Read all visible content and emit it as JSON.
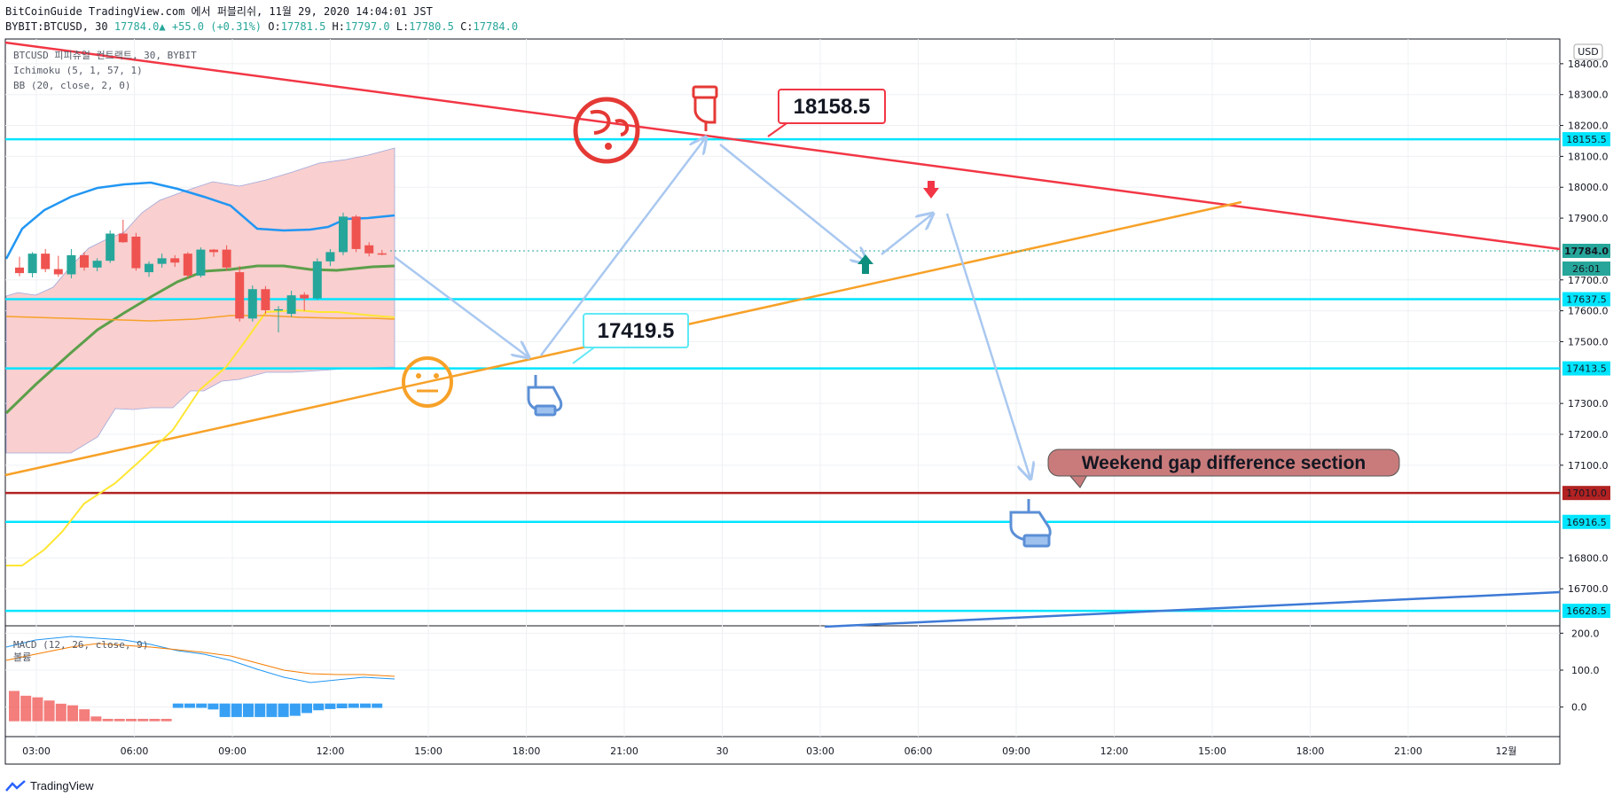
{
  "header": {
    "line1": "BitCoinGuide TradingView.com 에서 퍼블리쉬, 11월 29, 2020 14:04:01 JST",
    "symbol": "BYBIT:BTCUSD, 30",
    "last": "17784.0",
    "change": "+55.0 (+0.31%)",
    "o_label": "O:",
    "o": "17781.5",
    "h_label": "H:",
    "h": "17797.0",
    "l_label": "L:",
    "l": "17780.5",
    "c_label": "C:",
    "c": "17784.0"
  },
  "legend": {
    "symbol_line": "BTCUSD 피피츄얼 컨트랙트, 30, BYBIT",
    "ichimoku": "Ichimoku (5, 1, 57, 1)",
    "bb": "BB (20, close, 2, 0)",
    "macd": "MACD (12, 26, close, 9)",
    "volume": "볼륨"
  },
  "currency_button": "USD",
  "watermark": "TradingView",
  "colors": {
    "up": "#26a69a",
    "down": "#ef5350",
    "horizontal": "#00e5ff",
    "resistance": "#f23645",
    "support": "#f7a128",
    "bb_upper": "#2196f3",
    "baseline": "#b22222",
    "arrow": "#a9c8f0",
    "cloud": "#f9cfcf"
  },
  "price_badges": {
    "last": "17784.0",
    "countdown": "26:01"
  },
  "callouts": {
    "top": "18158.5",
    "mid": "17419.5",
    "weekend": "Weekend gap difference section"
  },
  "chart_data": {
    "type": "candlestick",
    "symbol": "BTCUSD",
    "timeframe": "30",
    "x_ticks": [
      "03:00",
      "06:00",
      "09:00",
      "12:00",
      "15:00",
      "18:00",
      "21:00",
      "30",
      "03:00",
      "06:00",
      "09:00",
      "12:00",
      "15:00",
      "18:00",
      "21:00",
      "12월"
    ],
    "price_ticks": [
      18400,
      18300,
      18200,
      18100,
      18000,
      17900,
      17700,
      17600,
      17500,
      17300,
      17200,
      17100,
      16800,
      16700
    ],
    "price_ylim": [
      16580,
      18480
    ],
    "macd_ticks": [
      200,
      100,
      0
    ],
    "macd_ylim": [
      -80,
      220
    ],
    "horizontal_levels": [
      {
        "price": 18155.5,
        "color": "#00e5ff"
      },
      {
        "price": 17637.5,
        "color": "#00e5ff"
      },
      {
        "price": 17413.5,
        "color": "#00e5ff"
      },
      {
        "price": 17010.0,
        "color": "#b22222"
      },
      {
        "price": 16916.5,
        "color": "#00e5ff"
      },
      {
        "price": 16628.5,
        "color": "#00e5ff"
      }
    ],
    "candles": [
      {
        "o": 17740,
        "h": 17775,
        "l": 17712,
        "c": 17722
      },
      {
        "o": 17722,
        "h": 17790,
        "l": 17708,
        "c": 17785
      },
      {
        "o": 17785,
        "h": 17800,
        "l": 17725,
        "c": 17735
      },
      {
        "o": 17735,
        "h": 17778,
        "l": 17710,
        "c": 17718
      },
      {
        "o": 17718,
        "h": 17800,
        "l": 17705,
        "c": 17780
      },
      {
        "o": 17780,
        "h": 17790,
        "l": 17730,
        "c": 17740
      },
      {
        "o": 17740,
        "h": 17770,
        "l": 17728,
        "c": 17762
      },
      {
        "o": 17762,
        "h": 17860,
        "l": 17755,
        "c": 17850
      },
      {
        "o": 17850,
        "h": 17895,
        "l": 17820,
        "c": 17822
      },
      {
        "o": 17840,
        "h": 17852,
        "l": 17730,
        "c": 17738
      },
      {
        "o": 17725,
        "h": 17760,
        "l": 17710,
        "c": 17752
      },
      {
        "o": 17752,
        "h": 17785,
        "l": 17740,
        "c": 17770
      },
      {
        "o": 17770,
        "h": 17780,
        "l": 17742,
        "c": 17756
      },
      {
        "o": 17785,
        "h": 17790,
        "l": 17705,
        "c": 17714
      },
      {
        "o": 17714,
        "h": 17805,
        "l": 17708,
        "c": 17798
      },
      {
        "o": 17798,
        "h": 17800,
        "l": 17775,
        "c": 17790
      },
      {
        "o": 17798,
        "h": 17812,
        "l": 17730,
        "c": 17740
      },
      {
        "o": 17725,
        "h": 17745,
        "l": 17565,
        "c": 17575
      },
      {
        "o": 17575,
        "h": 17682,
        "l": 17565,
        "c": 17670
      },
      {
        "o": 17670,
        "h": 17680,
        "l": 17590,
        "c": 17602
      },
      {
        "o": 17602,
        "h": 17615,
        "l": 17530,
        "c": 17605
      },
      {
        "o": 17590,
        "h": 17665,
        "l": 17580,
        "c": 17650
      },
      {
        "o": 17652,
        "h": 17660,
        "l": 17600,
        "c": 17640
      },
      {
        "o": 17640,
        "h": 17770,
        "l": 17635,
        "c": 17760
      },
      {
        "o": 17760,
        "h": 17800,
        "l": 17745,
        "c": 17790
      },
      {
        "o": 17790,
        "h": 17918,
        "l": 17780,
        "c": 17905
      },
      {
        "o": 17905,
        "h": 17910,
        "l": 17790,
        "c": 17800
      },
      {
        "o": 17812,
        "h": 17822,
        "l": 17776,
        "c": 17786
      },
      {
        "o": 17786,
        "h": 17797,
        "l": 17780,
        "c": 17784
      }
    ],
    "volume_bars": [
      38,
      32,
      30,
      26,
      22,
      20,
      15,
      6,
      3,
      3,
      3,
      3,
      3,
      3,
      -2,
      -2,
      -2,
      -6,
      -25,
      -25,
      -25,
      -25,
      -25,
      -25,
      -22,
      -15,
      -8,
      -5,
      -3,
      -2,
      -2,
      -2
    ],
    "volume_colors": [
      "#ef5350",
      "#ef5350",
      "#ef5350",
      "#ef5350",
      "#ef5350",
      "#ef5350",
      "#ef5350",
      "#ef5350",
      "#ef5350",
      "#ef5350",
      "#ef5350",
      "#ef5350",
      "#ef5350",
      "#ef5350",
      "#2196f3",
      "#2196f3",
      "#2196f3",
      "#2196f3",
      "#2196f3",
      "#2196f3",
      "#2196f3",
      "#2196f3",
      "#2196f3",
      "#2196f3",
      "#2196f3",
      "#2196f3",
      "#2196f3",
      "#2196f3",
      "#2196f3",
      "#2196f3",
      "#2196f3",
      "#2196f3"
    ]
  }
}
